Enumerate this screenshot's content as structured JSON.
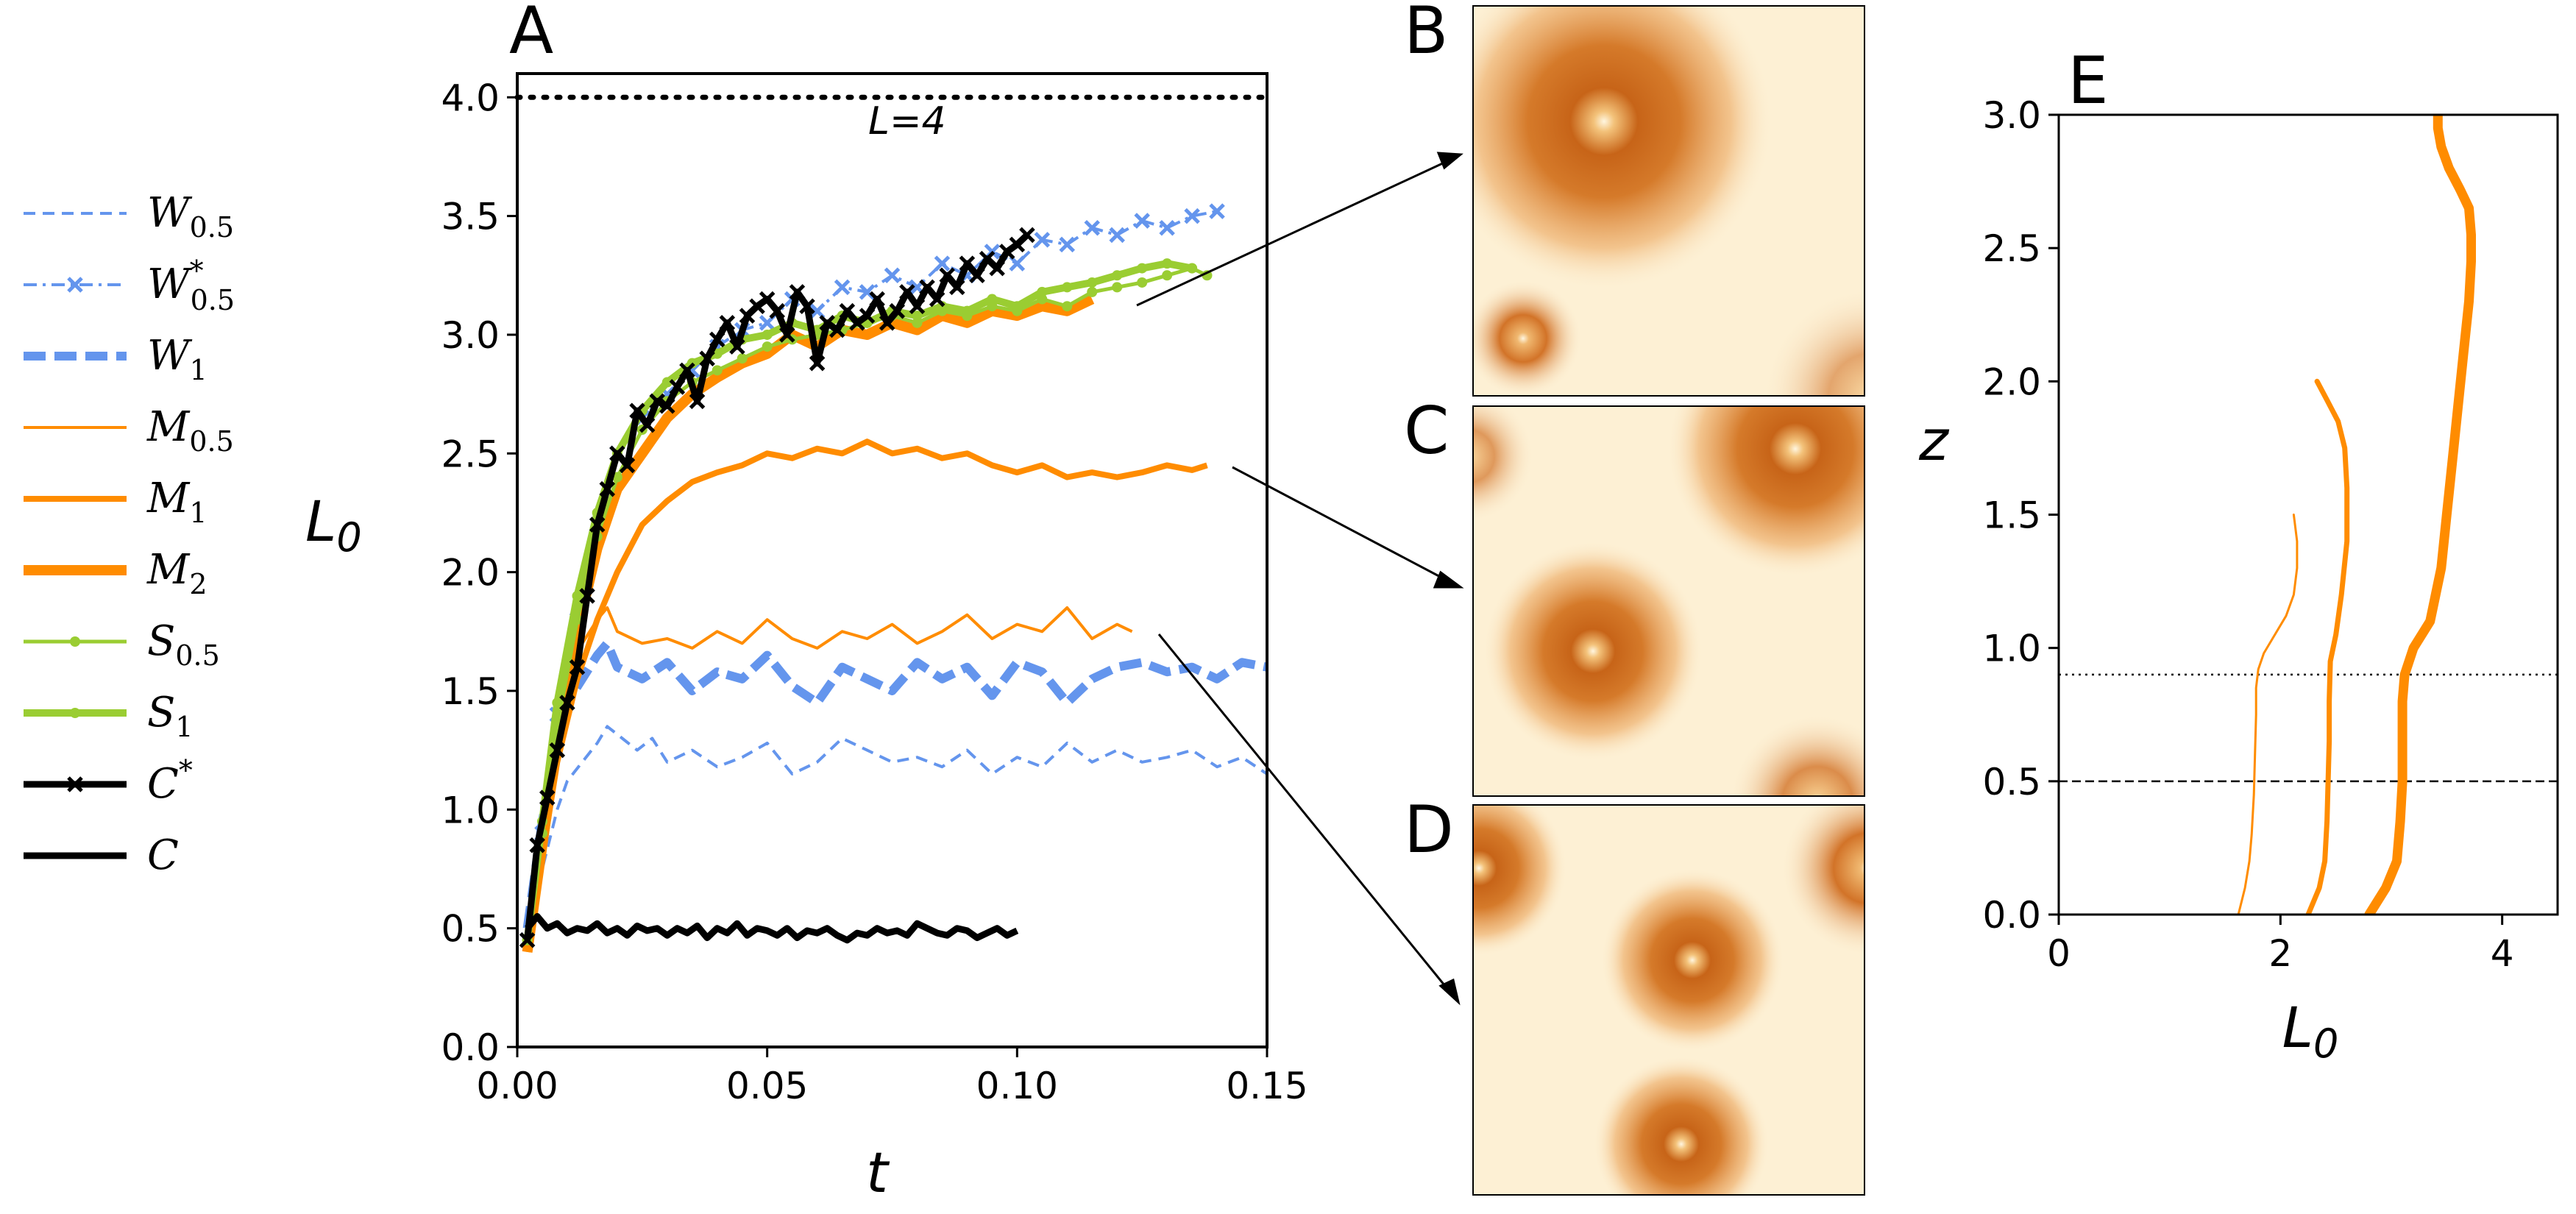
{
  "chart_data": [
    {
      "panel": "A",
      "type": "line",
      "xlabel": "t",
      "ylabel": "L0",
      "xlim": [
        0.0,
        0.15
      ],
      "ylim": [
        0.0,
        4.1
      ],
      "xticks": [
        "0.00",
        "0.05",
        "0.10",
        "0.15"
      ],
      "yticks": [
        "0.0",
        "0.5",
        "1.0",
        "1.5",
        "2.0",
        "2.5",
        "3.0",
        "3.5",
        "4.0"
      ],
      "hline": {
        "y": 4.0,
        "label": "L=4",
        "style": "dotted"
      },
      "legend": {
        "placement": "outside-left",
        "entries": [
          {
            "name": "W",
            "sub": "0.5",
            "sup": ""
          },
          {
            "name": "W",
            "sub": "0.5",
            "sup": "*"
          },
          {
            "name": "W",
            "sub": "1",
            "sup": ""
          },
          {
            "name": "M",
            "sub": "0.5",
            "sup": ""
          },
          {
            "name": "M",
            "sub": "1",
            "sup": ""
          },
          {
            "name": "M",
            "sub": "2",
            "sup": ""
          },
          {
            "name": "S",
            "sub": "0.5",
            "sup": ""
          },
          {
            "name": "S",
            "sub": "1",
            "sup": ""
          },
          {
            "name": "C",
            "sub": "",
            "sup": "*"
          },
          {
            "name": "C",
            "sub": "",
            "sup": ""
          }
        ]
      },
      "series": [
        {
          "name": "W0.5",
          "color": "#6495ED",
          "style": "dashed-thin",
          "x": [
            0.002,
            0.005,
            0.008,
            0.01,
            0.013,
            0.016,
            0.018,
            0.021,
            0.024,
            0.027,
            0.03,
            0.035,
            0.04,
            0.045,
            0.05,
            0.055,
            0.06,
            0.065,
            0.07,
            0.075,
            0.08,
            0.085,
            0.09,
            0.095,
            0.1,
            0.105,
            0.11,
            0.115,
            0.12,
            0.125,
            0.13,
            0.135,
            0.14,
            0.145,
            0.15
          ],
          "values": [
            0.45,
            0.75,
            1.0,
            1.12,
            1.2,
            1.28,
            1.35,
            1.3,
            1.25,
            1.3,
            1.2,
            1.25,
            1.18,
            1.22,
            1.28,
            1.15,
            1.2,
            1.3,
            1.25,
            1.2,
            1.22,
            1.18,
            1.25,
            1.15,
            1.22,
            1.18,
            1.28,
            1.2,
            1.25,
            1.2,
            1.22,
            1.25,
            1.18,
            1.22,
            1.15
          ]
        },
        {
          "name": "W0.5*",
          "color": "#6495ED",
          "style": "dashdot-x",
          "x": [
            0.002,
            0.005,
            0.008,
            0.012,
            0.016,
            0.02,
            0.025,
            0.03,
            0.035,
            0.04,
            0.045,
            0.05,
            0.055,
            0.06,
            0.065,
            0.07,
            0.075,
            0.08,
            0.085,
            0.09,
            0.095,
            0.1,
            0.105,
            0.11,
            0.115,
            0.12,
            0.125,
            0.13,
            0.135,
            0.14
          ],
          "values": [
            0.45,
            0.9,
            1.4,
            1.8,
            2.2,
            2.5,
            2.65,
            2.75,
            2.85,
            2.95,
            3.02,
            3.05,
            3.15,
            3.1,
            3.2,
            3.18,
            3.25,
            3.2,
            3.3,
            3.25,
            3.35,
            3.3,
            3.4,
            3.38,
            3.45,
            3.42,
            3.48,
            3.45,
            3.5,
            3.52
          ]
        },
        {
          "name": "W1",
          "color": "#6495ED",
          "style": "dashed-thick",
          "x": [
            0.002,
            0.005,
            0.008,
            0.01,
            0.013,
            0.016,
            0.018,
            0.02,
            0.025,
            0.03,
            0.035,
            0.04,
            0.045,
            0.05,
            0.055,
            0.06,
            0.065,
            0.07,
            0.075,
            0.08,
            0.085,
            0.09,
            0.095,
            0.1,
            0.105,
            0.11,
            0.115,
            0.12,
            0.125,
            0.13,
            0.135,
            0.14,
            0.145,
            0.15
          ],
          "values": [
            0.5,
            0.95,
            1.3,
            1.45,
            1.55,
            1.65,
            1.7,
            1.6,
            1.55,
            1.62,
            1.5,
            1.58,
            1.55,
            1.65,
            1.52,
            1.45,
            1.6,
            1.55,
            1.5,
            1.62,
            1.55,
            1.6,
            1.48,
            1.62,
            1.58,
            1.45,
            1.55,
            1.6,
            1.62,
            1.58,
            1.6,
            1.55,
            1.62,
            1.6
          ]
        },
        {
          "name": "M0.5",
          "color": "#FF8C00",
          "style": "solid-thin",
          "x": [
            0.002,
            0.005,
            0.008,
            0.01,
            0.013,
            0.016,
            0.018,
            0.02,
            0.025,
            0.03,
            0.035,
            0.04,
            0.045,
            0.05,
            0.055,
            0.06,
            0.065,
            0.07,
            0.075,
            0.08,
            0.085,
            0.09,
            0.095,
            0.1,
            0.105,
            0.11,
            0.115,
            0.12,
            0.123
          ],
          "values": [
            0.45,
            0.9,
            1.3,
            1.55,
            1.7,
            1.8,
            1.85,
            1.75,
            1.7,
            1.72,
            1.68,
            1.75,
            1.7,
            1.8,
            1.72,
            1.68,
            1.75,
            1.72,
            1.78,
            1.7,
            1.75,
            1.82,
            1.72,
            1.78,
            1.75,
            1.85,
            1.72,
            1.78,
            1.75
          ]
        },
        {
          "name": "M1",
          "color": "#FF8C00",
          "style": "solid-medium",
          "x": [
            0.002,
            0.005,
            0.008,
            0.012,
            0.016,
            0.02,
            0.025,
            0.03,
            0.035,
            0.04,
            0.045,
            0.05,
            0.055,
            0.06,
            0.065,
            0.07,
            0.075,
            0.08,
            0.085,
            0.09,
            0.095,
            0.1,
            0.105,
            0.11,
            0.115,
            0.12,
            0.125,
            0.13,
            0.135,
            0.138
          ],
          "values": [
            0.4,
            0.8,
            1.2,
            1.55,
            1.8,
            2.0,
            2.2,
            2.3,
            2.38,
            2.42,
            2.45,
            2.5,
            2.48,
            2.52,
            2.5,
            2.55,
            2.5,
            2.52,
            2.48,
            2.5,
            2.45,
            2.42,
            2.45,
            2.4,
            2.42,
            2.4,
            2.42,
            2.45,
            2.43,
            2.45
          ]
        },
        {
          "name": "M2",
          "color": "#FF8C00",
          "style": "solid-thick",
          "x": [
            0.002,
            0.005,
            0.008,
            0.012,
            0.016,
            0.02,
            0.025,
            0.03,
            0.035,
            0.04,
            0.045,
            0.05,
            0.055,
            0.06,
            0.065,
            0.07,
            0.075,
            0.08,
            0.085,
            0.09,
            0.095,
            0.1,
            0.105,
            0.11,
            0.115
          ],
          "values": [
            0.4,
            0.85,
            1.3,
            1.75,
            2.1,
            2.35,
            2.5,
            2.65,
            2.75,
            2.82,
            2.88,
            2.92,
            3.0,
            2.95,
            3.02,
            3.0,
            3.05,
            3.02,
            3.08,
            3.05,
            3.1,
            3.08,
            3.12,
            3.1,
            3.15
          ]
        },
        {
          "name": "S0.5",
          "color": "#9ACD32",
          "style": "solid-dot",
          "x": [
            0.002,
            0.005,
            0.008,
            0.012,
            0.016,
            0.02,
            0.025,
            0.03,
            0.035,
            0.04,
            0.045,
            0.05,
            0.055,
            0.06,
            0.065,
            0.07,
            0.075,
            0.08,
            0.085,
            0.09,
            0.095,
            0.1,
            0.105,
            0.11,
            0.115,
            0.12,
            0.125,
            0.13,
            0.135,
            0.138
          ],
          "values": [
            0.45,
            0.9,
            1.35,
            1.8,
            2.15,
            2.4,
            2.6,
            2.72,
            2.8,
            2.85,
            2.9,
            2.95,
            2.98,
            3.0,
            3.02,
            3.05,
            3.08,
            3.05,
            3.1,
            3.08,
            3.12,
            3.1,
            3.15,
            3.12,
            3.18,
            3.2,
            3.22,
            3.25,
            3.28,
            3.25
          ]
        },
        {
          "name": "S1",
          "color": "#9ACD32",
          "style": "solid-dot-thick",
          "x": [
            0.002,
            0.005,
            0.008,
            0.012,
            0.016,
            0.02,
            0.025,
            0.03,
            0.035,
            0.04,
            0.045,
            0.05,
            0.055,
            0.06,
            0.065,
            0.07,
            0.075,
            0.08,
            0.085,
            0.09,
            0.095,
            0.1,
            0.105,
            0.11,
            0.115,
            0.12,
            0.125,
            0.13,
            0.135
          ],
          "values": [
            0.45,
            0.95,
            1.45,
            1.9,
            2.25,
            2.5,
            2.68,
            2.8,
            2.88,
            2.92,
            2.98,
            3.0,
            3.05,
            3.02,
            3.08,
            3.05,
            3.1,
            3.08,
            3.12,
            3.1,
            3.15,
            3.12,
            3.18,
            3.2,
            3.22,
            3.25,
            3.28,
            3.3,
            3.28
          ]
        },
        {
          "name": "C*",
          "color": "#000000",
          "style": "solid-x",
          "x": [
            0.002,
            0.004,
            0.006,
            0.008,
            0.01,
            0.012,
            0.014,
            0.016,
            0.018,
            0.02,
            0.022,
            0.024,
            0.026,
            0.028,
            0.03,
            0.032,
            0.034,
            0.036,
            0.038,
            0.04,
            0.042,
            0.044,
            0.046,
            0.048,
            0.05,
            0.052,
            0.054,
            0.056,
            0.058,
            0.06,
            0.062,
            0.064,
            0.066,
            0.068,
            0.07,
            0.072,
            0.074,
            0.076,
            0.078,
            0.08,
            0.082,
            0.084,
            0.086,
            0.088,
            0.09,
            0.092,
            0.094,
            0.096,
            0.098,
            0.1,
            0.102
          ],
          "values": [
            0.45,
            0.85,
            1.05,
            1.25,
            1.45,
            1.6,
            1.9,
            2.2,
            2.35,
            2.5,
            2.45,
            2.68,
            2.62,
            2.72,
            2.7,
            2.78,
            2.85,
            2.72,
            2.9,
            2.98,
            3.05,
            2.95,
            3.08,
            3.12,
            3.15,
            3.1,
            3.0,
            3.18,
            3.12,
            2.88,
            3.05,
            3.02,
            3.1,
            3.05,
            3.08,
            3.15,
            3.05,
            3.1,
            3.18,
            3.12,
            3.2,
            3.15,
            3.25,
            3.2,
            3.3,
            3.25,
            3.32,
            3.28,
            3.35,
            3.38,
            3.42
          ]
        },
        {
          "name": "C",
          "color": "#000000",
          "style": "solid-black",
          "x": [
            0.002,
            0.004,
            0.006,
            0.008,
            0.01,
            0.012,
            0.014,
            0.016,
            0.018,
            0.02,
            0.022,
            0.024,
            0.026,
            0.028,
            0.03,
            0.032,
            0.034,
            0.036,
            0.038,
            0.04,
            0.042,
            0.044,
            0.046,
            0.048,
            0.05,
            0.052,
            0.054,
            0.056,
            0.058,
            0.06,
            0.062,
            0.064,
            0.066,
            0.068,
            0.07,
            0.072,
            0.074,
            0.076,
            0.078,
            0.08,
            0.082,
            0.084,
            0.086,
            0.088,
            0.09,
            0.092,
            0.094,
            0.096,
            0.098,
            0.1
          ],
          "values": [
            0.5,
            0.55,
            0.5,
            0.52,
            0.48,
            0.5,
            0.49,
            0.52,
            0.48,
            0.5,
            0.47,
            0.51,
            0.49,
            0.5,
            0.47,
            0.5,
            0.48,
            0.51,
            0.46,
            0.5,
            0.48,
            0.52,
            0.47,
            0.5,
            0.49,
            0.47,
            0.5,
            0.46,
            0.49,
            0.48,
            0.5,
            0.47,
            0.45,
            0.48,
            0.47,
            0.5,
            0.48,
            0.49,
            0.47,
            0.52,
            0.5,
            0.48,
            0.47,
            0.5,
            0.49,
            0.46,
            0.48,
            0.5,
            0.47,
            0.49
          ]
        }
      ]
    },
    {
      "panel": "E",
      "type": "line",
      "xlabel": "L0",
      "ylabel": "z",
      "xlim": [
        0,
        4.5
      ],
      "ylim": [
        0.0,
        3.0
      ],
      "xticks": [
        "0",
        "2",
        "4"
      ],
      "yticks": [
        "0.0",
        "0.5",
        "1.0",
        "1.5",
        "2.0",
        "2.5",
        "3.0"
      ],
      "hlines": [
        {
          "y": 0.9,
          "style": "dotted"
        },
        {
          "y": 0.5,
          "style": "dashed"
        }
      ],
      "series": [
        {
          "name": "M0.5",
          "color": "#FF8C00",
          "style": "thin",
          "x": [
            1.62,
            1.68,
            1.72,
            1.74,
            1.76,
            1.77,
            1.78,
            1.78,
            1.8,
            1.85,
            1.95,
            2.05,
            2.12,
            2.15,
            2.15,
            2.12
          ],
          "values": [
            0.0,
            0.1,
            0.2,
            0.3,
            0.45,
            0.6,
            0.75,
            0.85,
            0.92,
            0.98,
            1.05,
            1.12,
            1.2,
            1.3,
            1.4,
            1.5
          ]
        },
        {
          "name": "M1",
          "color": "#FF8C00",
          "style": "medium",
          "x": [
            2.25,
            2.35,
            2.4,
            2.42,
            2.43,
            2.44,
            2.44,
            2.45,
            2.5,
            2.55,
            2.6,
            2.6,
            2.58,
            2.52,
            2.42,
            2.33
          ],
          "values": [
            0.0,
            0.1,
            0.2,
            0.35,
            0.5,
            0.65,
            0.8,
            0.95,
            1.05,
            1.2,
            1.4,
            1.6,
            1.75,
            1.85,
            1.93,
            2.0
          ]
        },
        {
          "name": "M2",
          "color": "#FF8C00",
          "style": "thick",
          "x": [
            2.8,
            2.95,
            3.05,
            3.08,
            3.1,
            3.1,
            3.1,
            3.12,
            3.2,
            3.35,
            3.45,
            3.5,
            3.55,
            3.6,
            3.65,
            3.7,
            3.72,
            3.72,
            3.7,
            3.62,
            3.52,
            3.45,
            3.42,
            3.42
          ],
          "values": [
            0.0,
            0.1,
            0.2,
            0.35,
            0.5,
            0.65,
            0.8,
            0.9,
            1.0,
            1.1,
            1.3,
            1.5,
            1.7,
            1.9,
            2.1,
            2.3,
            2.45,
            2.55,
            2.65,
            2.72,
            2.8,
            2.88,
            2.95,
            3.0
          ]
        }
      ]
    }
  ],
  "labels": {
    "panel_a": "A",
    "panel_b": "B",
    "panel_c": "C",
    "panel_d": "D",
    "panel_e": "E",
    "hline_label": "L=4",
    "a_ylabel": "L",
    "a_ylabel_sub": "0",
    "a_xlabel": "t",
    "e_xlabel": "L",
    "e_xlabel_sub": "0",
    "e_ylabel": "z"
  }
}
